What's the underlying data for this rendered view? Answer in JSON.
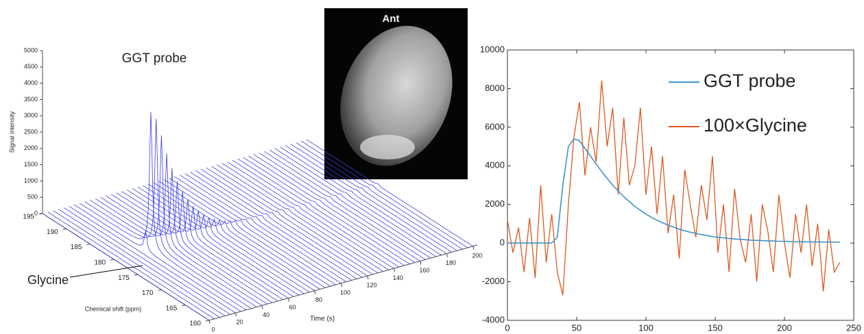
{
  "chart_data": [
    {
      "type": "waterfall3d",
      "x_label": "Time (s)",
      "y_label": "Chemical shift (ppm)",
      "z_label": "Signal intensity",
      "annotations": [
        "GGT probe",
        "Glycine"
      ],
      "color": "#3a3ae8",
      "peak_shift": 180,
      "x": [
        0,
        4,
        8,
        12,
        16,
        20,
        24,
        28,
        32,
        36,
        40,
        44,
        48,
        52,
        56,
        60,
        64,
        68,
        72,
        76,
        80,
        84,
        88,
        92,
        96,
        100,
        104,
        108,
        112,
        116,
        120,
        124,
        128,
        132,
        136,
        140,
        144,
        148,
        152,
        156,
        160,
        164,
        168,
        172,
        176,
        180,
        184,
        188,
        192,
        196,
        200
      ],
      "values": [
        0,
        0,
        0,
        0,
        0,
        0,
        600,
        4200,
        3950,
        3400,
        2800,
        2300,
        1850,
        1500,
        1200,
        950,
        760,
        600,
        470,
        370,
        290,
        230,
        180,
        145,
        120,
        100,
        90,
        85,
        80,
        75,
        70,
        65,
        60,
        55,
        50,
        50,
        50,
        50,
        50,
        50,
        50,
        50,
        50,
        50,
        50,
        50,
        50,
        50,
        50,
        50,
        50
      ],
      "xlim": [
        0,
        200
      ],
      "xticks": [
        0,
        20,
        40,
        60,
        80,
        100,
        120,
        140,
        160,
        180,
        200
      ],
      "ylim": [
        160,
        195
      ],
      "yticks": [
        160,
        165,
        170,
        175,
        180,
        185,
        190,
        195
      ],
      "zlim": [
        0,
        5000
      ],
      "zticks": [
        0,
        500,
        1000,
        1500,
        2000,
        2500,
        3000,
        3500,
        4000,
        4500,
        5000
      ]
    },
    {
      "type": "line",
      "x": [
        0,
        4,
        8,
        12,
        16,
        20,
        24,
        28,
        32,
        36,
        40,
        44,
        48,
        52,
        56,
        60,
        64,
        68,
        72,
        76,
        80,
        84,
        88,
        92,
        96,
        100,
        104,
        108,
        112,
        116,
        120,
        124,
        128,
        132,
        136,
        140,
        144,
        148,
        152,
        156,
        160,
        164,
        168,
        172,
        176,
        180,
        184,
        188,
        192,
        196,
        200,
        204,
        208,
        212,
        216,
        220,
        224,
        228,
        232,
        236,
        240
      ],
      "series": [
        {
          "name": "GGT probe",
          "color": "#3d93c9",
          "values": [
            0,
            0,
            0,
            0,
            0,
            0,
            0,
            0,
            0,
            300,
            3000,
            5000,
            5400,
            5300,
            4900,
            4500,
            4100,
            3700,
            3350,
            3000,
            2700,
            2400,
            2150,
            1900,
            1700,
            1500,
            1330,
            1180,
            1050,
            930,
            820,
            720,
            640,
            560,
            500,
            440,
            390,
            340,
            300,
            270,
            240,
            210,
            190,
            170,
            150,
            140,
            125,
            115,
            105,
            95,
            90,
            80,
            75,
            70,
            65,
            60,
            55,
            50,
            50,
            50,
            50
          ]
        },
        {
          "name": "100×Glycine",
          "color": "#d9581f",
          "values": [
            1200,
            -500,
            800,
            -1500,
            1300,
            -1800,
            3000,
            -1000,
            1500,
            -1500,
            -2700,
            2000,
            5500,
            7300,
            3500,
            6000,
            4200,
            8400,
            5000,
            7000,
            2500,
            6500,
            3000,
            4000,
            7000,
            2500,
            5000,
            1500,
            4500,
            500,
            2500,
            -800,
            3800,
            2000,
            300,
            3000,
            1200,
            4500,
            -500,
            2000,
            -1500,
            2800,
            200,
            -1000,
            1500,
            -2000,
            2000,
            600,
            -1500,
            2500,
            0,
            -1800,
            1500,
            -500,
            2000,
            -1200,
            1000,
            -2500,
            700,
            -1500,
            -1000
          ]
        }
      ],
      "xlim": [
        0,
        250
      ],
      "xticks": [
        0,
        50,
        100,
        150,
        200,
        250
      ],
      "ylim": [
        -4000,
        10000
      ],
      "yticks": [
        -4000,
        -2000,
        0,
        2000,
        4000,
        6000,
        8000,
        10000
      ],
      "legend": "upper right"
    }
  ],
  "image": {
    "label": "Ant"
  }
}
